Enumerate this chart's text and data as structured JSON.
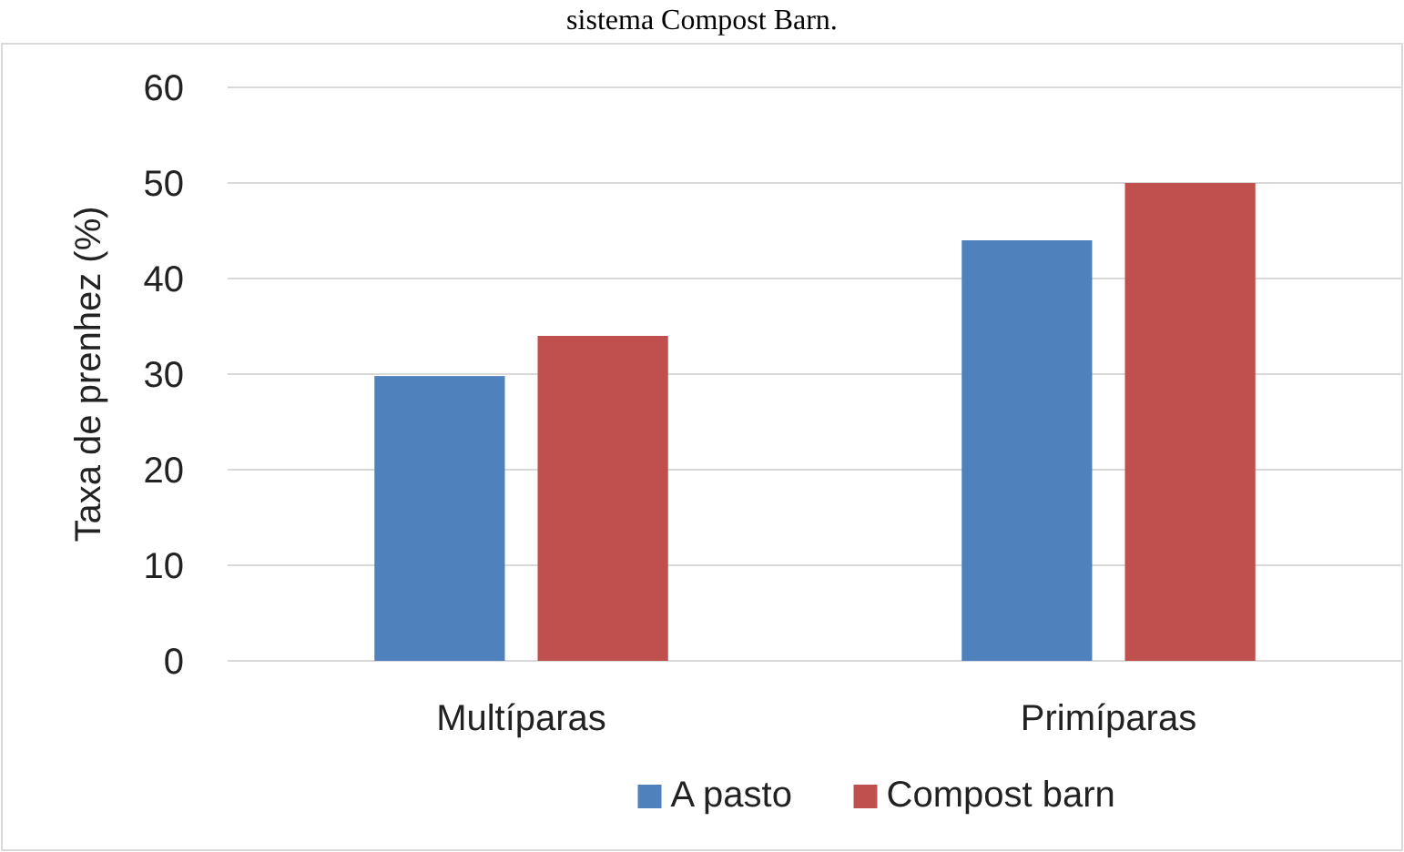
{
  "chart_data": {
    "type": "bar",
    "title": "sistema Compost Barn.",
    "ylabel": "Taxa de prenhez (%)",
    "categories": [
      "Multíparas",
      "Primíparas"
    ],
    "series": [
      {
        "name": "A pasto",
        "color": "#4f81bd",
        "values": [
          29.8,
          44
        ]
      },
      {
        "name": "Compost barn",
        "color": "#c0504d",
        "values": [
          34,
          50
        ]
      }
    ],
    "ylim": [
      0,
      60
    ],
    "yticks": [
      0,
      10,
      20,
      30,
      40,
      50,
      60
    ],
    "grid": "y",
    "legend": "bottom"
  }
}
